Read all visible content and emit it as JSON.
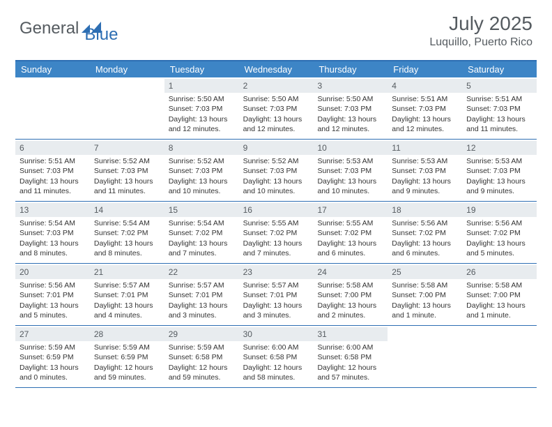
{
  "logo": {
    "text1": "General",
    "text2": "Blue"
  },
  "title": "July 2025",
  "location": "Luquillo, Puerto Rico",
  "colors": {
    "accent": "#3d85c6",
    "border": "#2d6eb3",
    "daybg": "#e8ecef",
    "text_muted": "#555b60",
    "text_body": "#333333",
    "white": "#ffffff"
  },
  "weekdays": [
    "Sunday",
    "Monday",
    "Tuesday",
    "Wednesday",
    "Thursday",
    "Friday",
    "Saturday"
  ],
  "weeks": [
    [
      {
        "day": "",
        "sunrise": "",
        "sunset": "",
        "daylight1": "",
        "daylight2": ""
      },
      {
        "day": "",
        "sunrise": "",
        "sunset": "",
        "daylight1": "",
        "daylight2": ""
      },
      {
        "day": "1",
        "sunrise": "Sunrise: 5:50 AM",
        "sunset": "Sunset: 7:03 PM",
        "daylight1": "Daylight: 13 hours",
        "daylight2": "and 12 minutes."
      },
      {
        "day": "2",
        "sunrise": "Sunrise: 5:50 AM",
        "sunset": "Sunset: 7:03 PM",
        "daylight1": "Daylight: 13 hours",
        "daylight2": "and 12 minutes."
      },
      {
        "day": "3",
        "sunrise": "Sunrise: 5:50 AM",
        "sunset": "Sunset: 7:03 PM",
        "daylight1": "Daylight: 13 hours",
        "daylight2": "and 12 minutes."
      },
      {
        "day": "4",
        "sunrise": "Sunrise: 5:51 AM",
        "sunset": "Sunset: 7:03 PM",
        "daylight1": "Daylight: 13 hours",
        "daylight2": "and 12 minutes."
      },
      {
        "day": "5",
        "sunrise": "Sunrise: 5:51 AM",
        "sunset": "Sunset: 7:03 PM",
        "daylight1": "Daylight: 13 hours",
        "daylight2": "and 11 minutes."
      }
    ],
    [
      {
        "day": "6",
        "sunrise": "Sunrise: 5:51 AM",
        "sunset": "Sunset: 7:03 PM",
        "daylight1": "Daylight: 13 hours",
        "daylight2": "and 11 minutes."
      },
      {
        "day": "7",
        "sunrise": "Sunrise: 5:52 AM",
        "sunset": "Sunset: 7:03 PM",
        "daylight1": "Daylight: 13 hours",
        "daylight2": "and 11 minutes."
      },
      {
        "day": "8",
        "sunrise": "Sunrise: 5:52 AM",
        "sunset": "Sunset: 7:03 PM",
        "daylight1": "Daylight: 13 hours",
        "daylight2": "and 10 minutes."
      },
      {
        "day": "9",
        "sunrise": "Sunrise: 5:52 AM",
        "sunset": "Sunset: 7:03 PM",
        "daylight1": "Daylight: 13 hours",
        "daylight2": "and 10 minutes."
      },
      {
        "day": "10",
        "sunrise": "Sunrise: 5:53 AM",
        "sunset": "Sunset: 7:03 PM",
        "daylight1": "Daylight: 13 hours",
        "daylight2": "and 10 minutes."
      },
      {
        "day": "11",
        "sunrise": "Sunrise: 5:53 AM",
        "sunset": "Sunset: 7:03 PM",
        "daylight1": "Daylight: 13 hours",
        "daylight2": "and 9 minutes."
      },
      {
        "day": "12",
        "sunrise": "Sunrise: 5:53 AM",
        "sunset": "Sunset: 7:03 PM",
        "daylight1": "Daylight: 13 hours",
        "daylight2": "and 9 minutes."
      }
    ],
    [
      {
        "day": "13",
        "sunrise": "Sunrise: 5:54 AM",
        "sunset": "Sunset: 7:03 PM",
        "daylight1": "Daylight: 13 hours",
        "daylight2": "and 8 minutes."
      },
      {
        "day": "14",
        "sunrise": "Sunrise: 5:54 AM",
        "sunset": "Sunset: 7:02 PM",
        "daylight1": "Daylight: 13 hours",
        "daylight2": "and 8 minutes."
      },
      {
        "day": "15",
        "sunrise": "Sunrise: 5:54 AM",
        "sunset": "Sunset: 7:02 PM",
        "daylight1": "Daylight: 13 hours",
        "daylight2": "and 7 minutes."
      },
      {
        "day": "16",
        "sunrise": "Sunrise: 5:55 AM",
        "sunset": "Sunset: 7:02 PM",
        "daylight1": "Daylight: 13 hours",
        "daylight2": "and 7 minutes."
      },
      {
        "day": "17",
        "sunrise": "Sunrise: 5:55 AM",
        "sunset": "Sunset: 7:02 PM",
        "daylight1": "Daylight: 13 hours",
        "daylight2": "and 6 minutes."
      },
      {
        "day": "18",
        "sunrise": "Sunrise: 5:56 AM",
        "sunset": "Sunset: 7:02 PM",
        "daylight1": "Daylight: 13 hours",
        "daylight2": "and 6 minutes."
      },
      {
        "day": "19",
        "sunrise": "Sunrise: 5:56 AM",
        "sunset": "Sunset: 7:02 PM",
        "daylight1": "Daylight: 13 hours",
        "daylight2": "and 5 minutes."
      }
    ],
    [
      {
        "day": "20",
        "sunrise": "Sunrise: 5:56 AM",
        "sunset": "Sunset: 7:01 PM",
        "daylight1": "Daylight: 13 hours",
        "daylight2": "and 5 minutes."
      },
      {
        "day": "21",
        "sunrise": "Sunrise: 5:57 AM",
        "sunset": "Sunset: 7:01 PM",
        "daylight1": "Daylight: 13 hours",
        "daylight2": "and 4 minutes."
      },
      {
        "day": "22",
        "sunrise": "Sunrise: 5:57 AM",
        "sunset": "Sunset: 7:01 PM",
        "daylight1": "Daylight: 13 hours",
        "daylight2": "and 3 minutes."
      },
      {
        "day": "23",
        "sunrise": "Sunrise: 5:57 AM",
        "sunset": "Sunset: 7:01 PM",
        "daylight1": "Daylight: 13 hours",
        "daylight2": "and 3 minutes."
      },
      {
        "day": "24",
        "sunrise": "Sunrise: 5:58 AM",
        "sunset": "Sunset: 7:00 PM",
        "daylight1": "Daylight: 13 hours",
        "daylight2": "and 2 minutes."
      },
      {
        "day": "25",
        "sunrise": "Sunrise: 5:58 AM",
        "sunset": "Sunset: 7:00 PM",
        "daylight1": "Daylight: 13 hours",
        "daylight2": "and 1 minute."
      },
      {
        "day": "26",
        "sunrise": "Sunrise: 5:58 AM",
        "sunset": "Sunset: 7:00 PM",
        "daylight1": "Daylight: 13 hours",
        "daylight2": "and 1 minute."
      }
    ],
    [
      {
        "day": "27",
        "sunrise": "Sunrise: 5:59 AM",
        "sunset": "Sunset: 6:59 PM",
        "daylight1": "Daylight: 13 hours",
        "daylight2": "and 0 minutes."
      },
      {
        "day": "28",
        "sunrise": "Sunrise: 5:59 AM",
        "sunset": "Sunset: 6:59 PM",
        "daylight1": "Daylight: 12 hours",
        "daylight2": "and 59 minutes."
      },
      {
        "day": "29",
        "sunrise": "Sunrise: 5:59 AM",
        "sunset": "Sunset: 6:58 PM",
        "daylight1": "Daylight: 12 hours",
        "daylight2": "and 59 minutes."
      },
      {
        "day": "30",
        "sunrise": "Sunrise: 6:00 AM",
        "sunset": "Sunset: 6:58 PM",
        "daylight1": "Daylight: 12 hours",
        "daylight2": "and 58 minutes."
      },
      {
        "day": "31",
        "sunrise": "Sunrise: 6:00 AM",
        "sunset": "Sunset: 6:58 PM",
        "daylight1": "Daylight: 12 hours",
        "daylight2": "and 57 minutes."
      },
      {
        "day": "",
        "sunrise": "",
        "sunset": "",
        "daylight1": "",
        "daylight2": ""
      },
      {
        "day": "",
        "sunrise": "",
        "sunset": "",
        "daylight1": "",
        "daylight2": ""
      }
    ]
  ]
}
